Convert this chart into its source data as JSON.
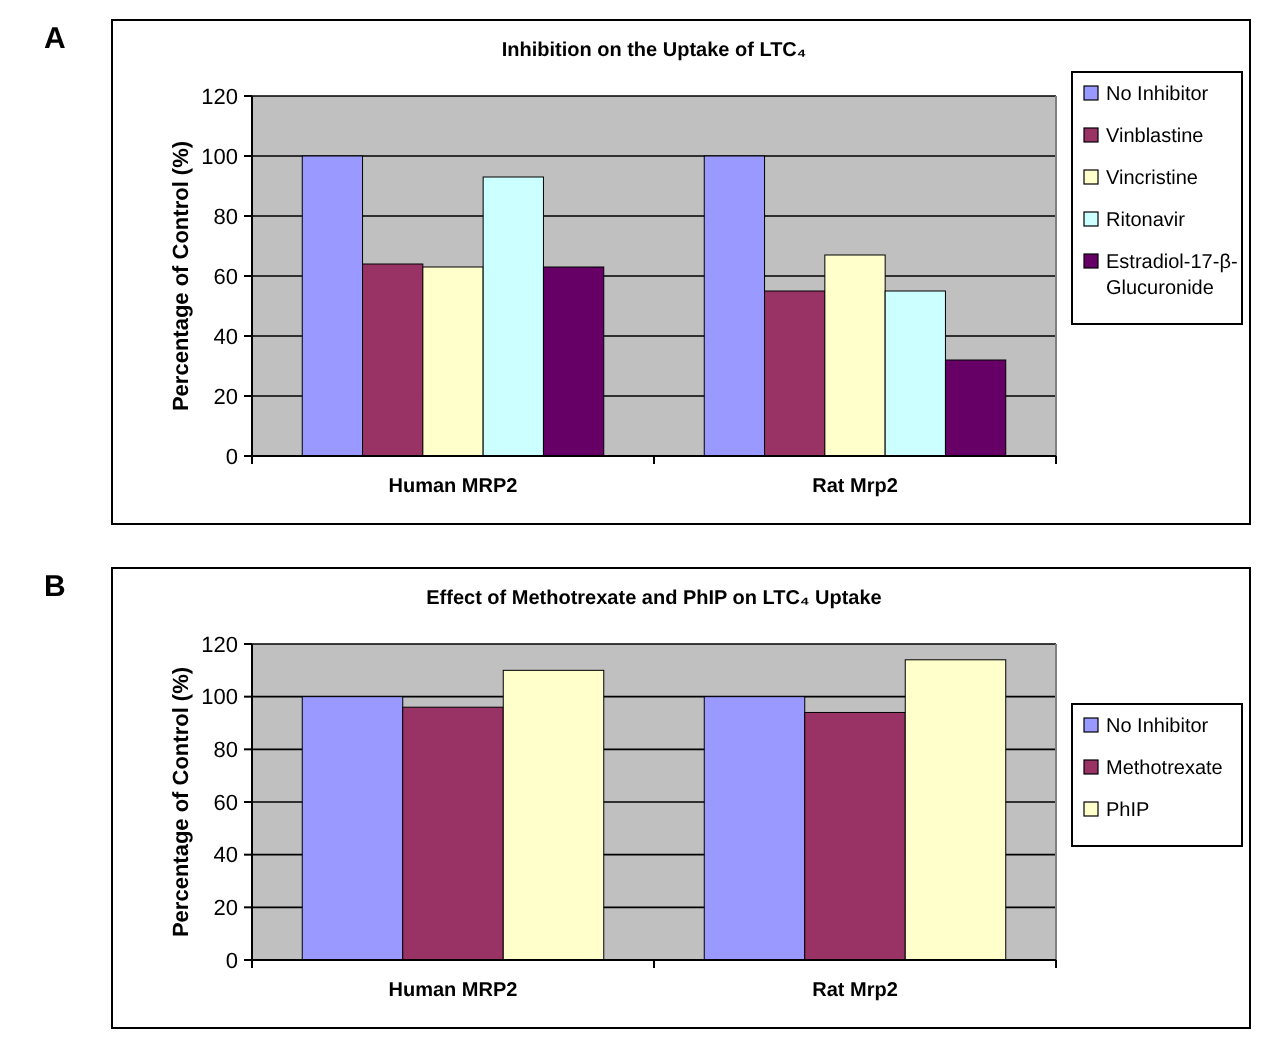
{
  "chart_data": [
    {
      "type": "bar",
      "title": "Inhibition on the Uptake of LTC₄",
      "ylabel": "Percentage of Control (%)",
      "annotations": [
        "A"
      ],
      "categories": [
        "Human MRP2",
        "Rat Mrp2"
      ],
      "series": [
        {
          "name": "No Inhibitor",
          "color": "#9999ff",
          "values": [
            100,
            100
          ]
        },
        {
          "name": "Vinblastine",
          "color": "#993366",
          "values": [
            64,
            55
          ]
        },
        {
          "name": "Vincristine",
          "color": "#ffffcc",
          "values": [
            63,
            67
          ]
        },
        {
          "name": "Ritonavir",
          "color": "#ccffff",
          "values": [
            93,
            55
          ]
        },
        {
          "name": "Estradiol-17-β-Glucuronide",
          "color": "#660066",
          "values": [
            63,
            32
          ]
        }
      ],
      "ylim": [
        0,
        120
      ],
      "yticks": [
        0,
        20,
        40,
        60,
        80,
        100,
        120
      ],
      "grid": "y",
      "legend": "right"
    },
    {
      "type": "bar",
      "title": "Effect of Methotrexate and PhIP on LTC₄ Uptake",
      "ylabel": "Percentage of Control (%)",
      "annotations": [
        "B"
      ],
      "categories": [
        "Human MRP2",
        "Rat Mrp2"
      ],
      "series": [
        {
          "name": "No Inhibitor",
          "color": "#9999ff",
          "values": [
            100,
            100
          ]
        },
        {
          "name": "Methotrexate",
          "color": "#993366",
          "values": [
            96,
            94
          ]
        },
        {
          "name": "PhIP",
          "color": "#ffffcc",
          "values": [
            110,
            114
          ]
        }
      ],
      "ylim": [
        0,
        120
      ],
      "yticks": [
        0,
        20,
        40,
        60,
        80,
        100,
        120
      ],
      "grid": "y",
      "legend": "right"
    }
  ]
}
